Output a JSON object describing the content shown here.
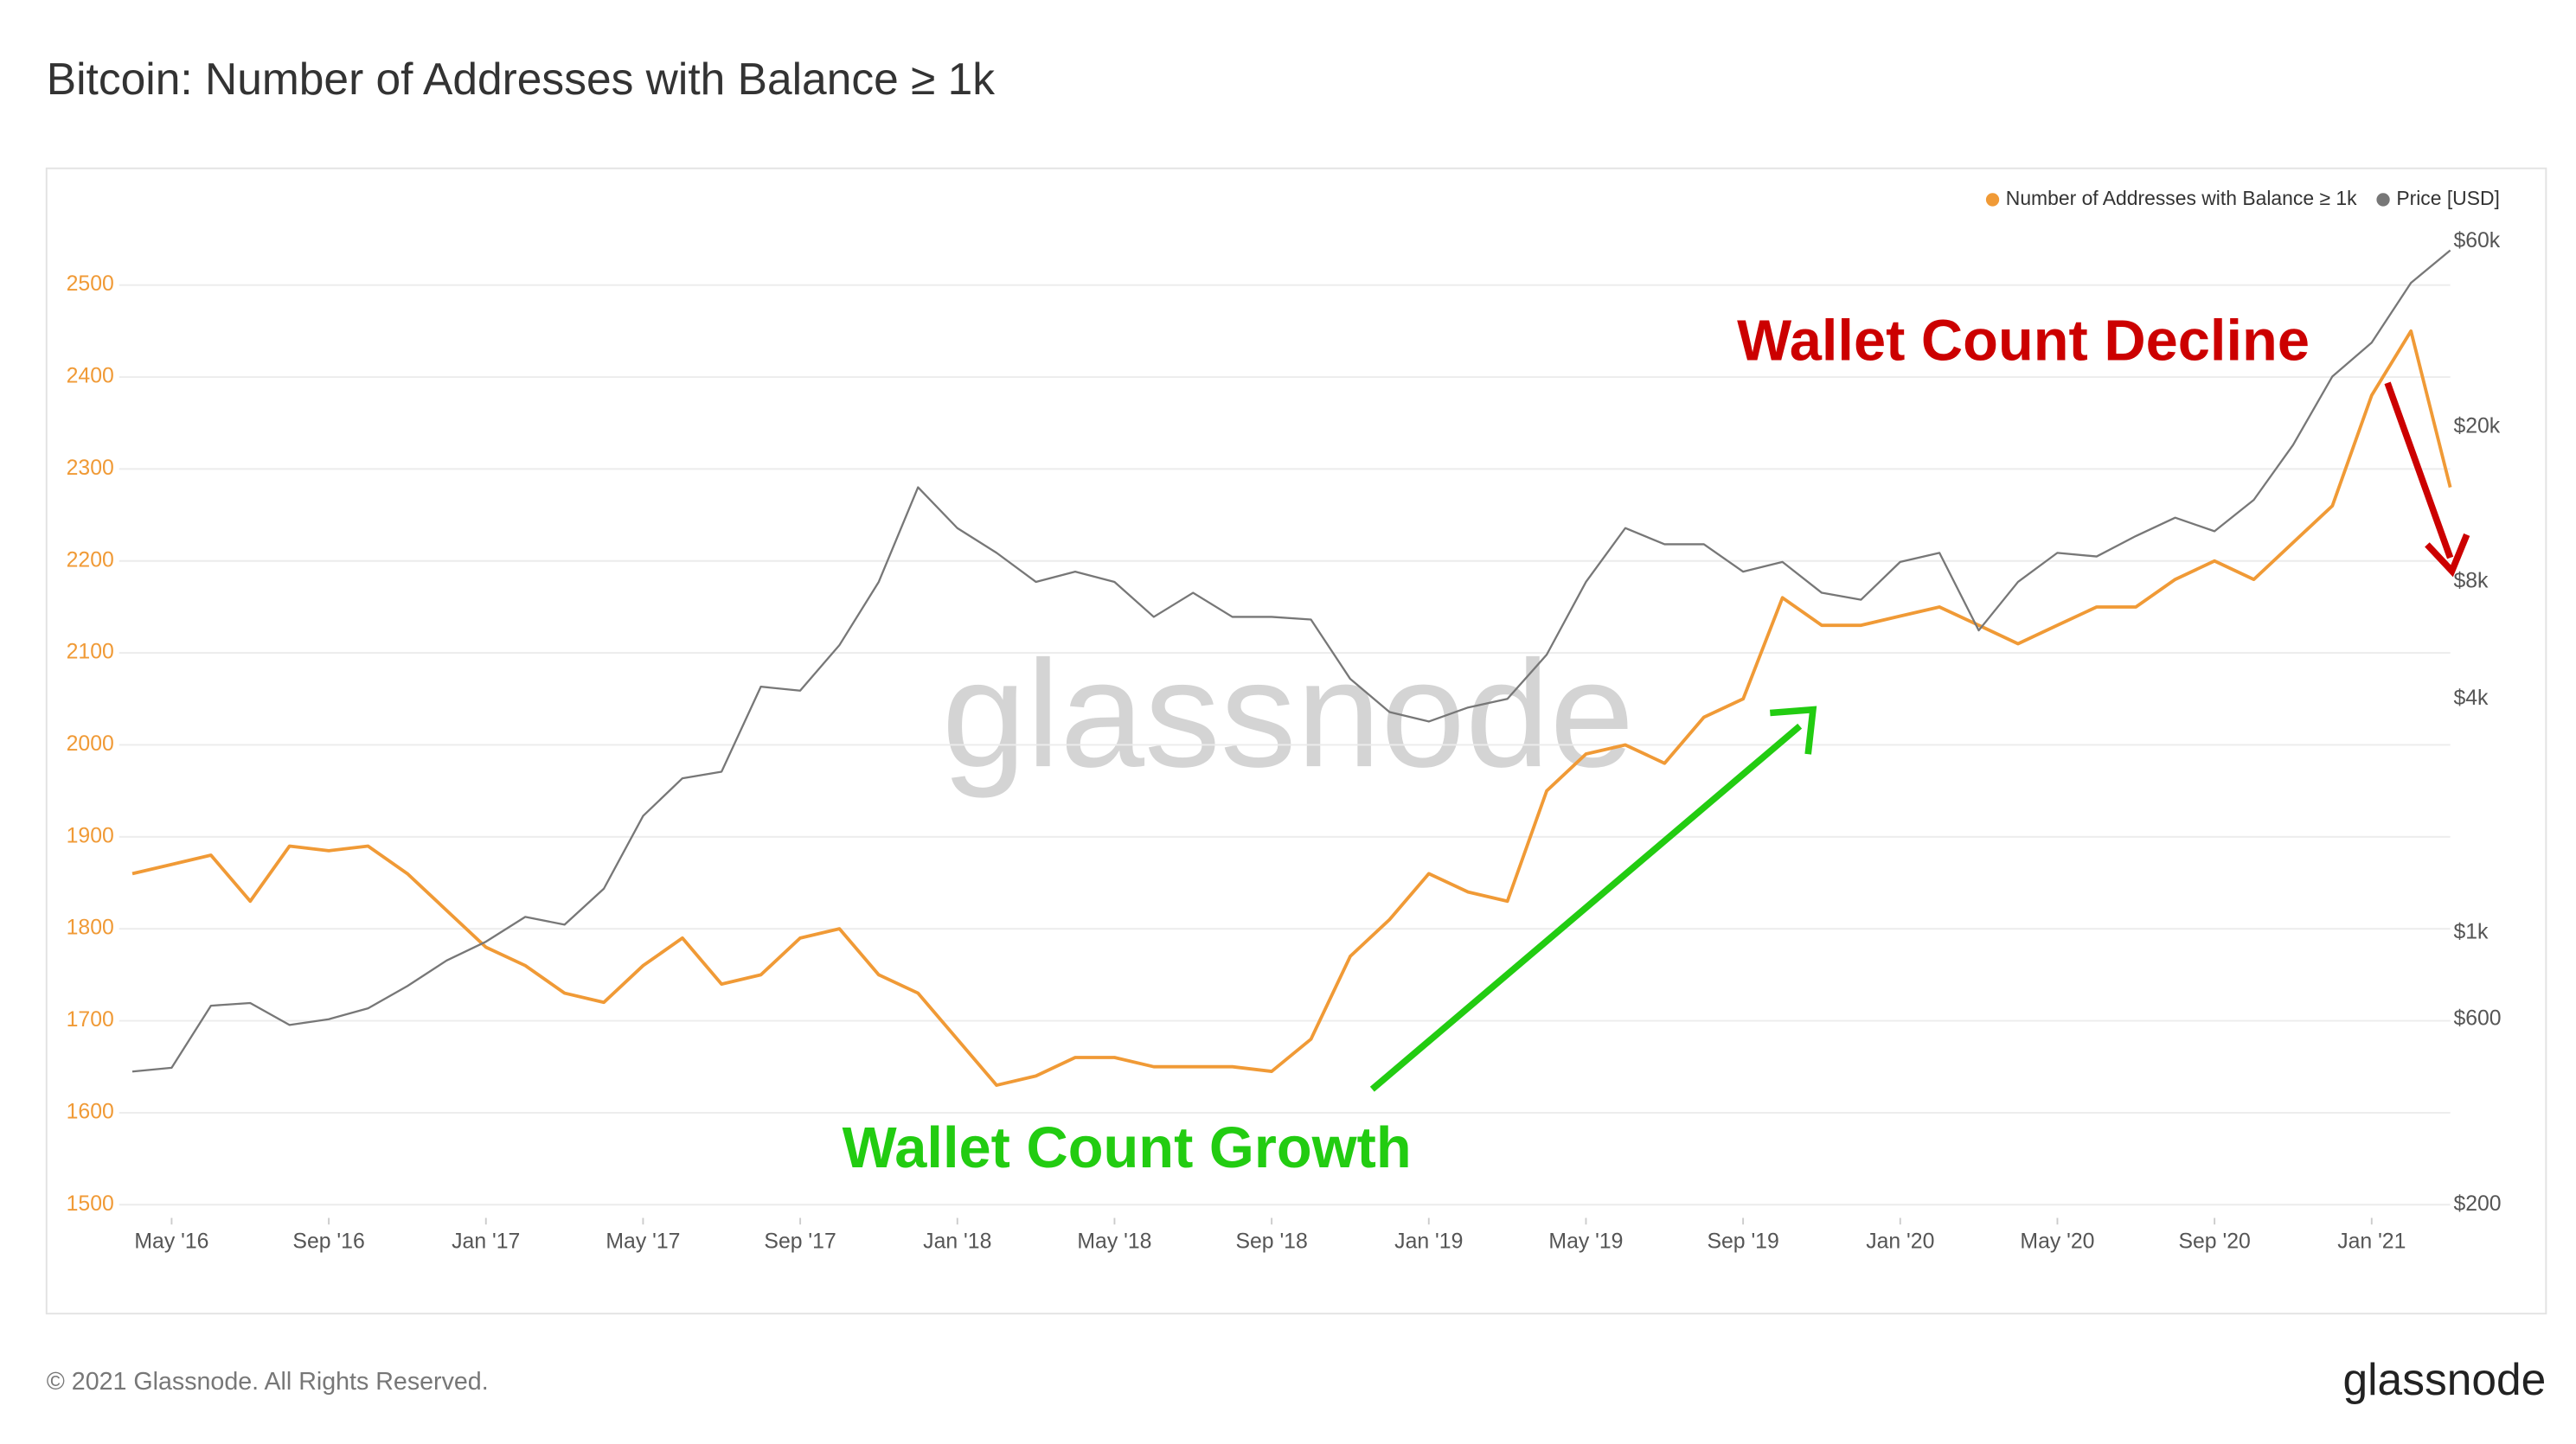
{
  "chart_data": {
    "type": "line",
    "title": "Bitcoin: Number of Addresses with Balance ≥ 1k",
    "watermark": "glassnode",
    "footer": "© 2021 Glassnode. All Rights Reserved.",
    "logo": "glassnode",
    "legend": "top-right",
    "grid": true,
    "x": [
      "2016-04",
      "2016-05",
      "2016-06",
      "2016-07",
      "2016-08",
      "2016-09",
      "2016-10",
      "2016-11",
      "2016-12",
      "2017-01",
      "2017-02",
      "2017-03",
      "2017-04",
      "2017-05",
      "2017-06",
      "2017-07",
      "2017-08",
      "2017-09",
      "2017-10",
      "2017-11",
      "2017-12",
      "2018-01",
      "2018-02",
      "2018-03",
      "2018-04",
      "2018-05",
      "2018-06",
      "2018-07",
      "2018-08",
      "2018-09",
      "2018-10",
      "2018-11",
      "2018-12",
      "2019-01",
      "2019-02",
      "2019-03",
      "2019-04",
      "2019-05",
      "2019-06",
      "2019-07",
      "2019-08",
      "2019-09",
      "2019-10",
      "2019-11",
      "2019-12",
      "2020-01",
      "2020-02",
      "2020-03",
      "2020-04",
      "2020-05",
      "2020-06",
      "2020-07",
      "2020-08",
      "2020-09",
      "2020-10",
      "2020-11",
      "2020-12",
      "2021-01",
      "2021-02",
      "2021-03"
    ],
    "xlim": [
      "2016-04",
      "2021-03"
    ],
    "xticks": [
      {
        "value": "2016-05",
        "label": "May '16"
      },
      {
        "value": "2016-09",
        "label": "Sep '16"
      },
      {
        "value": "2017-01",
        "label": "Jan '17"
      },
      {
        "value": "2017-05",
        "label": "May '17"
      },
      {
        "value": "2017-09",
        "label": "Sep '17"
      },
      {
        "value": "2018-01",
        "label": "Jan '18"
      },
      {
        "value": "2018-05",
        "label": "May '18"
      },
      {
        "value": "2018-09",
        "label": "Sep '18"
      },
      {
        "value": "2019-01",
        "label": "Jan '19"
      },
      {
        "value": "2019-05",
        "label": "May '19"
      },
      {
        "value": "2019-09",
        "label": "Sep '19"
      },
      {
        "value": "2020-01",
        "label": "Jan '20"
      },
      {
        "value": "2020-05",
        "label": "May '20"
      },
      {
        "value": "2020-09",
        "label": "Sep '20"
      },
      {
        "value": "2021-01",
        "label": "Jan '21"
      }
    ],
    "ylim": [
      1500,
      2600
    ],
    "yticks": [
      1500,
      1600,
      1700,
      1800,
      1900,
      2000,
      2100,
      2200,
      2300,
      2400,
      2500
    ],
    "y2lim": [
      200,
      80000
    ],
    "y2scale": "log",
    "y2ticks": [
      {
        "value": 200,
        "label": "$200"
      },
      {
        "value": 600,
        "label": "$600"
      },
      {
        "value": 1000,
        "label": "$1k"
      },
      {
        "value": 4000,
        "label": "$4k"
      },
      {
        "value": 8000,
        "label": "$8k"
      },
      {
        "value": 20000,
        "label": "$20k"
      },
      {
        "value": 60000,
        "label": "$60k"
      }
    ],
    "series": [
      {
        "name": "Number of Addresses with Balance ≥ 1k",
        "color": "#f09a36",
        "axis": "y",
        "values": [
          1860,
          1870,
          1880,
          1830,
          1890,
          1885,
          1890,
          1860,
          1820,
          1780,
          1760,
          1730,
          1720,
          1760,
          1790,
          1740,
          1750,
          1790,
          1800,
          1750,
          1730,
          1680,
          1630,
          1640,
          1660,
          1660,
          1650,
          1650,
          1650,
          1645,
          1680,
          1770,
          1810,
          1860,
          1840,
          1830,
          1950,
          1990,
          2000,
          1980,
          2030,
          2050,
          2160,
          2130,
          2130,
          2140,
          2150,
          2130,
          2110,
          2130,
          2150,
          2150,
          2180,
          2200,
          2180,
          2220,
          2260,
          2380,
          2450,
          2280
        ]
      },
      {
        "name": "Price [USD]",
        "color": "#777777",
        "axis": "y2",
        "values": [
          440,
          450,
          650,
          660,
          580,
          600,
          640,
          730,
          850,
          950,
          1100,
          1050,
          1300,
          2000,
          2500,
          2600,
          4300,
          4200,
          5500,
          8000,
          14000,
          11000,
          9500,
          8000,
          8500,
          8000,
          6500,
          7500,
          6500,
          6500,
          6400,
          4500,
          3700,
          3500,
          3800,
          4000,
          5200,
          8000,
          11000,
          10000,
          10000,
          8500,
          9000,
          7500,
          7200,
          9000,
          9500,
          6000,
          8000,
          9500,
          9300,
          10500,
          11700,
          10800,
          13000,
          18000,
          27000,
          33000,
          47000,
          57000
        ]
      }
    ],
    "annotations": [
      {
        "text": "Wallet Count Growth",
        "color": "#22cc11"
      },
      {
        "text": "Wallet Count Decline",
        "color": "#cc0000"
      }
    ]
  }
}
